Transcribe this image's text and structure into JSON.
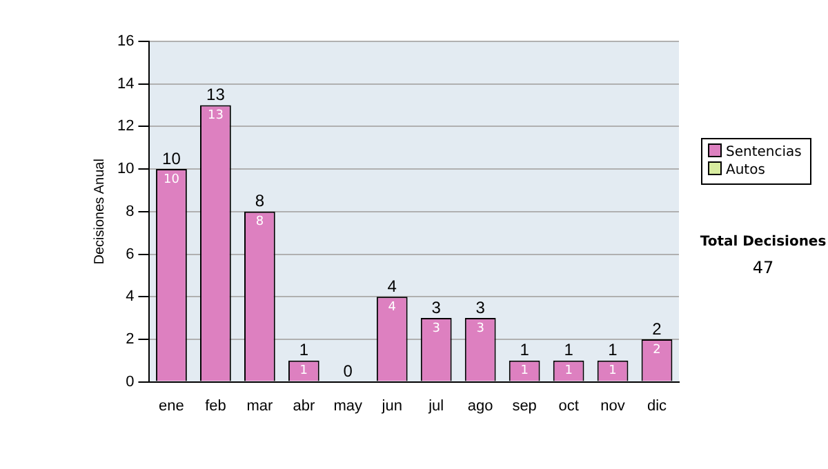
{
  "chart_data": {
    "type": "bar",
    "stacked": true,
    "ylabel": "Decisiones Anual",
    "categories": [
      "ene",
      "feb",
      "mar",
      "abr",
      "may",
      "jun",
      "jul",
      "ago",
      "sep",
      "oct",
      "nov",
      "dic"
    ],
    "series": [
      {
        "name": "Sentencias",
        "color": "#dd80c0",
        "values": [
          10,
          13,
          8,
          1,
          0,
          4,
          3,
          3,
          1,
          1,
          1,
          2
        ],
        "value_labels": [
          "10",
          "13",
          "8",
          "1",
          null,
          "4",
          "3",
          "3",
          "1",
          "1",
          "1",
          "2"
        ]
      },
      {
        "name": "Autos",
        "color": "#d8eca0",
        "values": [
          0,
          0,
          0,
          0,
          0,
          0,
          0,
          0,
          0,
          0,
          0,
          0
        ]
      }
    ],
    "totals": [
      "10",
      "13",
      "8",
      "1",
      "0",
      "4",
      "3",
      "3",
      "1",
      "1",
      "1",
      "2"
    ],
    "ylim": [
      0,
      16
    ],
    "yticks": [
      0,
      2,
      4,
      6,
      8,
      10,
      12,
      14,
      16
    ],
    "grid": "y",
    "legend": "right",
    "annotations": [
      "Total Decisiones",
      "47"
    ]
  }
}
